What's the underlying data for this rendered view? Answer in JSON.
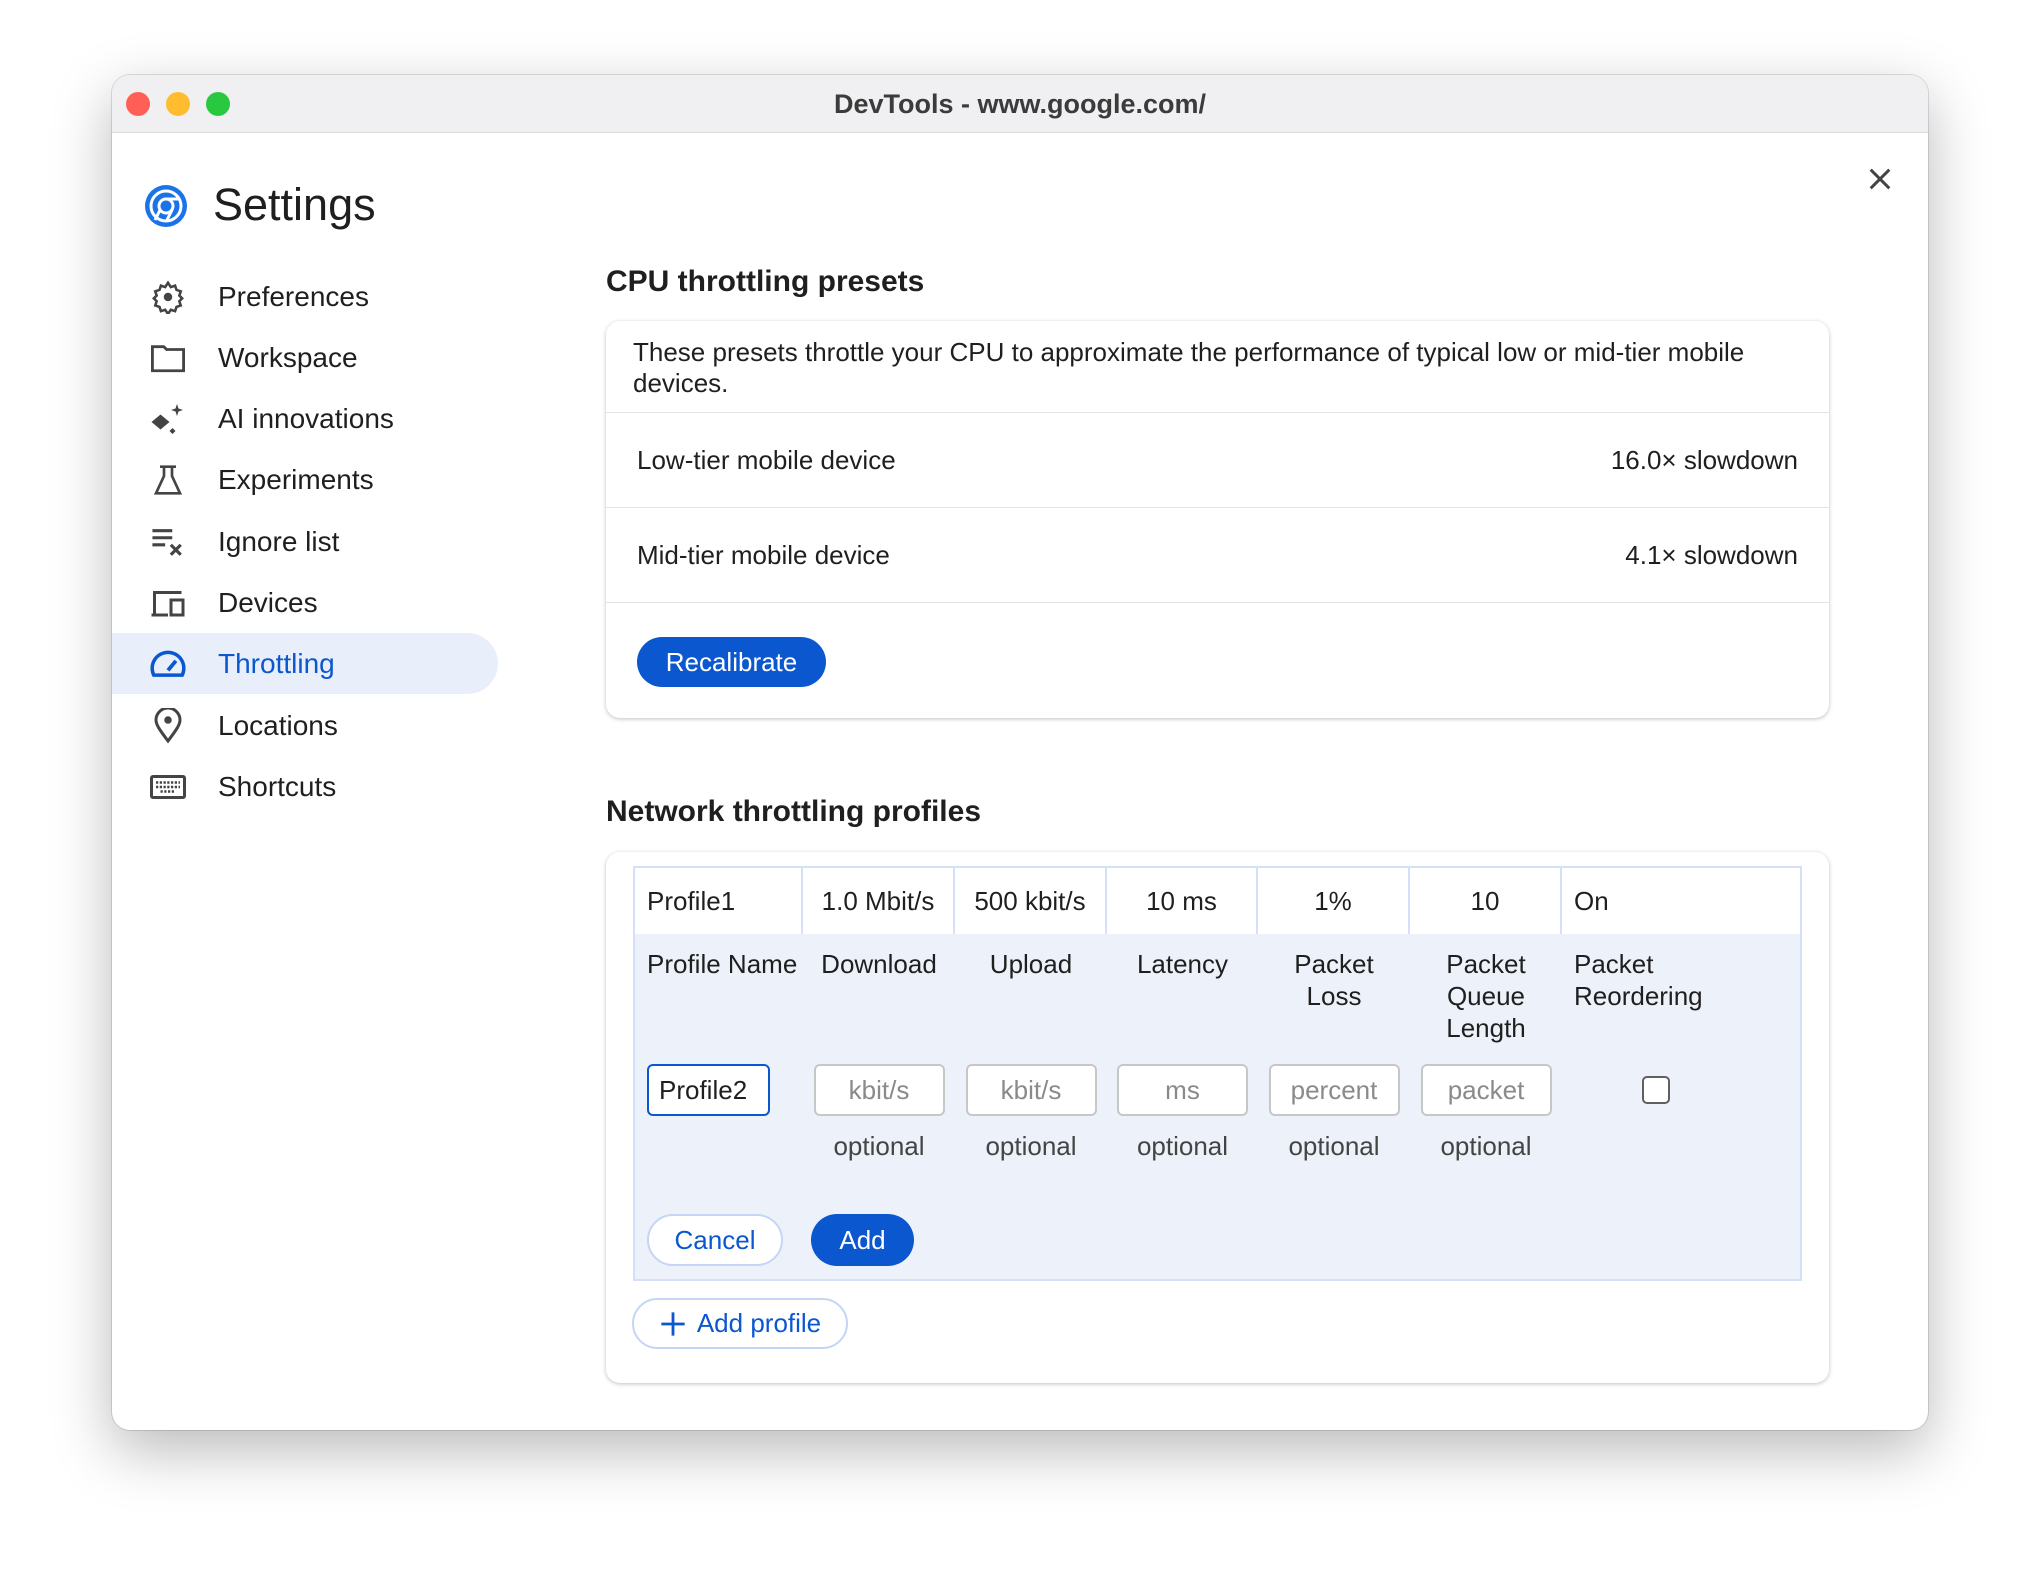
{
  "window": {
    "title": "DevTools - www.google.com/"
  },
  "colors": {
    "accent": "#0b57d0",
    "active_bg": "#e8effb",
    "table_bg": "#edf2fa"
  },
  "sidebar": {
    "title": "Settings",
    "logo_icon": "chrome-devtools-icon",
    "items": [
      {
        "label": "Preferences",
        "icon": "gear-icon"
      },
      {
        "label": "Workspace",
        "icon": "folder-icon"
      },
      {
        "label": "AI innovations",
        "icon": "sparkle-icon"
      },
      {
        "label": "Experiments",
        "icon": "flask-icon"
      },
      {
        "label": "Ignore list",
        "icon": "ignore-list-icon"
      },
      {
        "label": "Devices",
        "icon": "devices-icon"
      },
      {
        "label": "Throttling",
        "icon": "speedometer-icon",
        "active": true
      },
      {
        "label": "Locations",
        "icon": "location-pin-icon"
      },
      {
        "label": "Shortcuts",
        "icon": "keyboard-icon"
      }
    ]
  },
  "cpu": {
    "heading": "CPU throttling presets",
    "description": "These presets throttle your CPU to approximate the performance of typical low or mid-tier mobile devices.",
    "presets": [
      {
        "name": "Low-tier mobile device",
        "value": "16.0× slowdown"
      },
      {
        "name": "Mid-tier mobile device",
        "value": "4.1× slowdown"
      }
    ],
    "recalibrate_label": "Recalibrate"
  },
  "network": {
    "heading": "Network throttling profiles",
    "profile": [
      "Profile1",
      "1.0 Mbit/s",
      "500 kbit/s",
      "10 ms",
      "1%",
      "10",
      "On"
    ],
    "columns": [
      "Profile Name",
      "Download",
      "Upload",
      "Latency",
      "Packet Loss",
      "Packet Queue Length",
      "Packet Reordering"
    ],
    "form": {
      "name_value": "Profile2",
      "placeholders": [
        "kbit/s",
        "kbit/s",
        "ms",
        "percent",
        "packet"
      ],
      "hint": "optional",
      "reordering_checked": false
    },
    "cancel_label": "Cancel",
    "add_label": "Add",
    "add_profile_label": "Add profile"
  }
}
